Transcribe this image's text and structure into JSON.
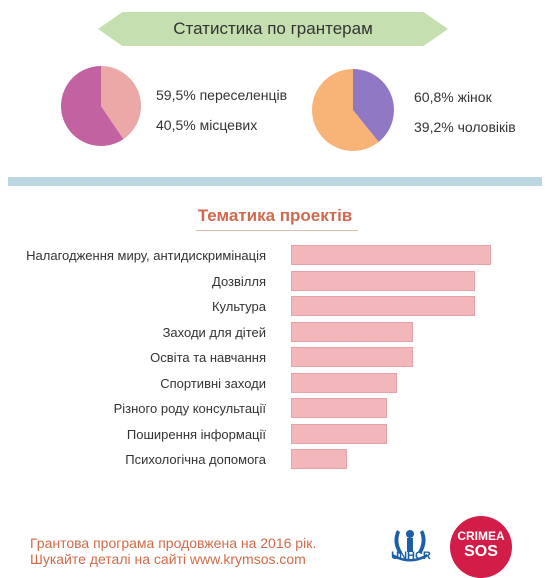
{
  "header": {
    "title": "Статистика по грантерам"
  },
  "pies": [
    {
      "slices": [
        {
          "label": "59,5% переселенців",
          "value": 59.5,
          "color": "#c262a0"
        },
        {
          "label": "40,5% місцевих",
          "value": 40.5,
          "color": "#eca7a7"
        }
      ]
    },
    {
      "slices": [
        {
          "label": "60,8% жінок",
          "value": 60.8,
          "color": "#f8b377"
        },
        {
          "label": "39,2% чоловіків",
          "value": 39.2,
          "color": "#9078c5"
        }
      ]
    }
  ],
  "section": {
    "title": "Тематика проектів"
  },
  "chart_data": {
    "type": "bar",
    "title": "Тематика проектів",
    "categories": [
      "Налагодження миру, антидискримінація",
      "Дозвілля",
      "Культура",
      "Заходи для дітей",
      "Освіта та навчання",
      "Спортивні заходи",
      "Різного роду консультації",
      "Поширення інформації",
      "Психологічна допомога"
    ],
    "values": [
      100,
      92,
      92,
      61,
      61,
      53,
      48,
      48,
      28
    ],
    "xlim": [
      0,
      100
    ],
    "color": "#f3b6bb"
  },
  "footer": {
    "line1": "Грантова програма продовжена на 2016 рік.",
    "line2": "Шукайте деталі на сайті www.krymsos.com"
  },
  "logos": {
    "unhcr": "UNHCR",
    "sos_line1": "CRIMEA",
    "sos_line2": "SOS"
  }
}
